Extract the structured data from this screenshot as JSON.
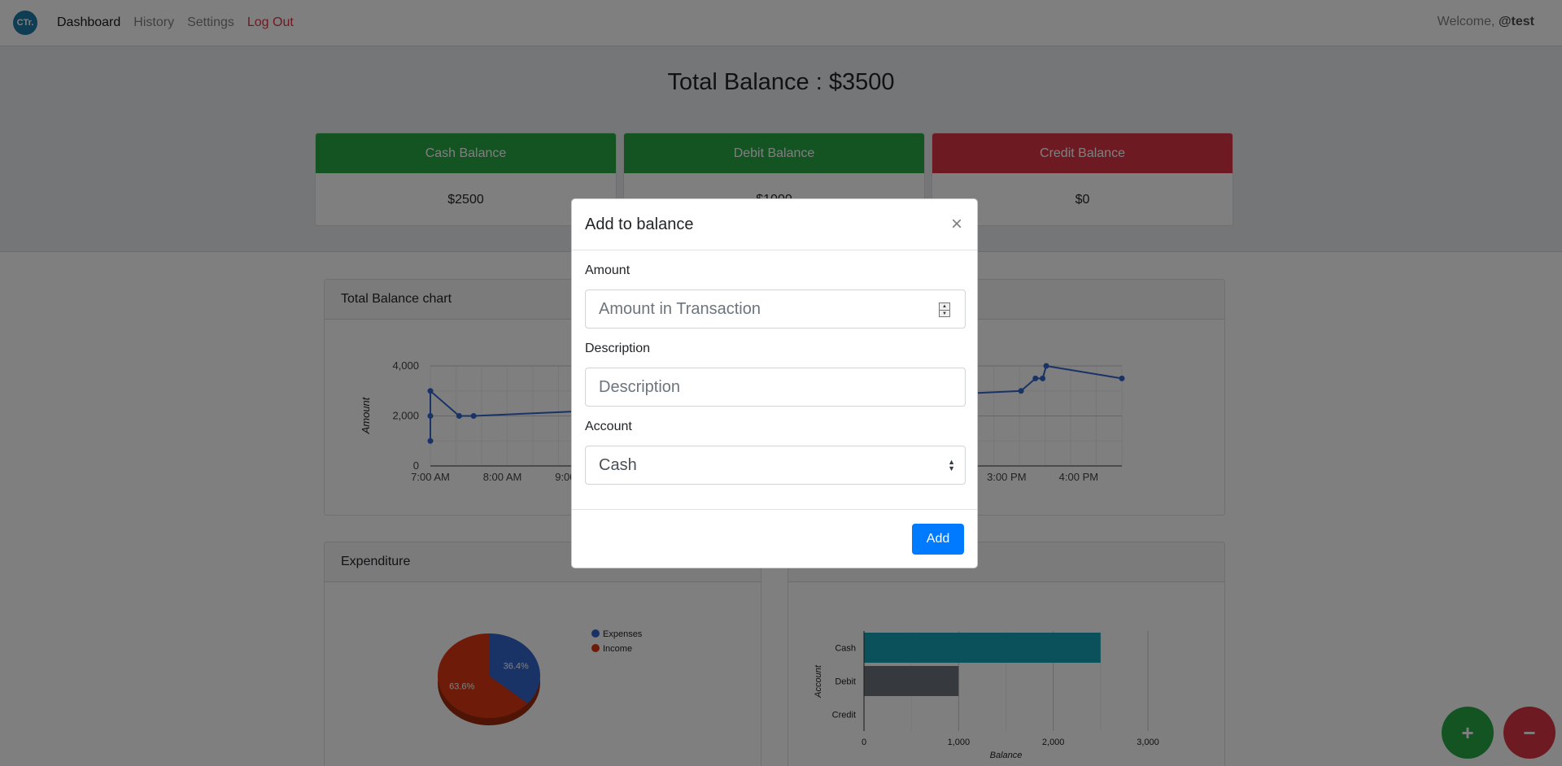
{
  "navbar": {
    "logo_text": "CTr.",
    "links": [
      "Dashboard",
      "History",
      "Settings",
      "Log Out"
    ],
    "welcome_prefix": "Welcome,",
    "username": "@test"
  },
  "summary": {
    "total_label": "Total Balance : $3500",
    "cards": [
      {
        "title": "Cash Balance",
        "value": "$2500",
        "color": "#28a745"
      },
      {
        "title": "Debit Balance",
        "value": "$1000",
        "color": "#28a745"
      },
      {
        "title": "Credit Balance",
        "value": "$0",
        "color": "#dc3545"
      }
    ]
  },
  "panels": {
    "balance_chart_title": "Total Balance chart",
    "expenditure_title": "Expenditure"
  },
  "chart_data": [
    {
      "type": "line",
      "ylabel": "Amount",
      "ylim": [
        0,
        4000
      ],
      "y_ticks": [
        "0",
        "2,000",
        "4,000"
      ],
      "x_tick_labels": [
        "7:00 AM",
        "8:00 AM",
        "9:00 AM",
        "3:00 PM",
        "4:00 PM"
      ],
      "color": "#3366cc",
      "series": [
        {
          "points": [
            [
              "7:00 AM",
              1000
            ],
            [
              "7:00 AM",
              2000
            ],
            [
              "7:00 AM",
              3000
            ],
            [
              "7:24 AM",
              2000
            ],
            [
              "7:36 AM",
              2000
            ],
            [
              "9:12 AM",
              2200
            ],
            [
              "3:12 PM",
              3000
            ],
            [
              "3:24 PM",
              3500
            ],
            [
              "3:30 PM",
              3500
            ],
            [
              "3:33 PM",
              4000
            ],
            [
              "4:36 PM",
              3500
            ]
          ]
        }
      ],
      "grid": true
    },
    {
      "type": "pie",
      "categories": [
        "Expenses",
        "Income"
      ],
      "values": [
        36.4,
        63.6
      ],
      "labels": [
        "36.4%",
        "63.6%"
      ],
      "colors": [
        "#3366cc",
        "#dc3912"
      ],
      "legend": "right"
    },
    {
      "type": "bar",
      "orientation": "horizontal",
      "categories": [
        "Cash",
        "Debit",
        "Credit"
      ],
      "values": [
        2500,
        1000,
        0
      ],
      "colors": [
        "#17a2b8",
        "#6c757d",
        "#6c757d"
      ],
      "xlabel": "Balance",
      "ylabel": "Account",
      "xlim": [
        0,
        3000
      ],
      "x_ticks": [
        "0",
        "1,000",
        "2,000",
        "3,000"
      ]
    }
  ],
  "modal": {
    "title": "Add to balance",
    "close_symbol": "×",
    "amount_label": "Amount",
    "amount_placeholder": "Amount in Transaction",
    "description_label": "Description",
    "description_placeholder": "Description",
    "account_label": "Account",
    "account_value": "Cash",
    "add_label": "Add"
  },
  "fabs": {
    "plus": "+",
    "minus": "−",
    "plus_color": "#28a745",
    "minus_color": "#dc3545"
  }
}
